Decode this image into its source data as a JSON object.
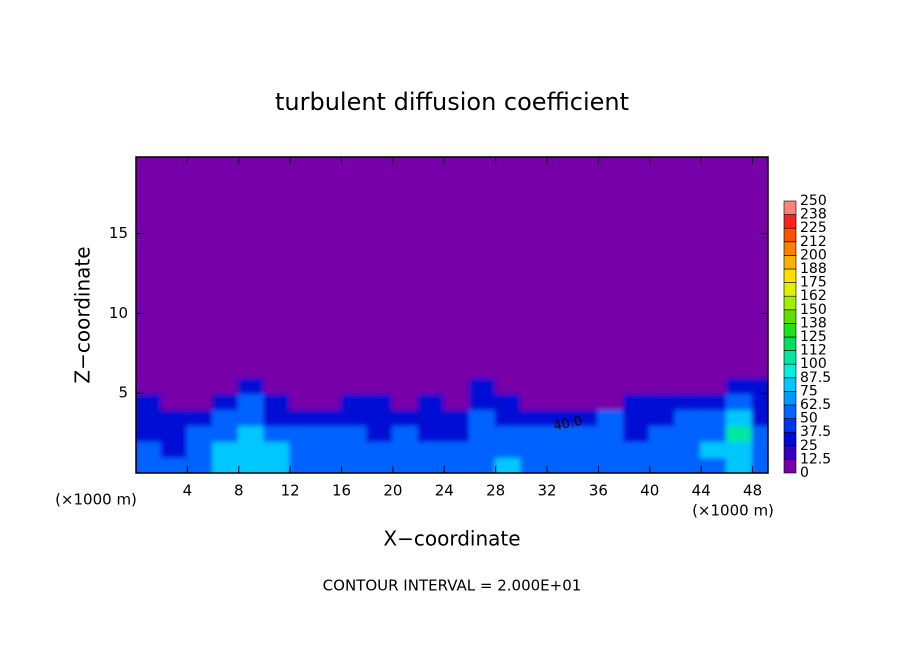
{
  "chart_data": {
    "type": "contour",
    "title": "turbulent diffusion coefficient",
    "xlabel": "X−coordinate",
    "ylabel": "Z−coordinate",
    "xlabel_unit": "(×1000 m)",
    "ylabel_unit": "(×1000 m)",
    "annotation": "CONTOUR INTERVAL = 2.000E+01",
    "contour_label": "40.0",
    "xlim": [
      0,
      49.2
    ],
    "ylim": [
      0,
      19.8
    ],
    "xticks": [
      4,
      8,
      12,
      16,
      20,
      24,
      28,
      32,
      36,
      40,
      44,
      48
    ],
    "yticks": [
      5,
      10,
      15
    ],
    "x": [
      1,
      3,
      5,
      7,
      9,
      11,
      13,
      15,
      17,
      19,
      21,
      23,
      25,
      27,
      29,
      31,
      33,
      35,
      37,
      39,
      41,
      43,
      45,
      47,
      49
    ],
    "z": [
      0.5,
      1.5,
      2.5,
      3.5,
      4.5,
      5.5,
      6.5
    ],
    "values": [
      [
        50,
        50,
        62,
        75,
        75,
        75,
        62,
        50,
        62,
        50,
        50,
        62,
        50,
        62,
        75,
        62,
        50,
        62,
        50,
        62,
        62,
        50,
        62,
        75,
        62
      ],
      [
        50,
        37,
        62,
        75,
        87,
        75,
        50,
        62,
        50,
        50,
        62,
        50,
        50,
        62,
        50,
        62,
        62,
        50,
        50,
        62,
        62,
        50,
        75,
        87,
        62
      ],
      [
        37,
        37,
        50,
        62,
        75,
        62,
        50,
        62,
        50,
        37,
        50,
        37,
        37,
        50,
        50,
        50,
        50,
        50,
        62,
        37,
        50,
        62,
        62,
        100,
        50
      ],
      [
        37,
        25,
        25,
        50,
        62,
        37,
        25,
        37,
        37,
        37,
        25,
        37,
        37,
        50,
        37,
        37,
        37,
        37,
        50,
        37,
        37,
        50,
        50,
        87,
        37
      ],
      [
        25,
        12,
        12,
        25,
        50,
        25,
        12,
        12,
        25,
        25,
        12,
        25,
        12,
        37,
        25,
        0,
        12,
        12,
        12,
        25,
        25,
        37,
        37,
        50,
        37
      ],
      [
        12,
        0,
        0,
        0,
        25,
        0,
        0,
        0,
        0,
        0,
        0,
        0,
        0,
        25,
        0,
        0,
        0,
        0,
        0,
        0,
        0,
        12,
        12,
        25,
        25
      ],
      [
        0,
        0,
        0,
        0,
        12,
        0,
        0,
        0,
        0,
        0,
        0,
        0,
        0,
        12,
        0,
        0,
        0,
        0,
        0,
        0,
        0,
        0,
        0,
        12,
        12
      ]
    ],
    "levels": [
      0,
      {
        "value": 12.5,
        "label": "12.5"
      },
      25,
      {
        "value": 37.5,
        "label": "37.5"
      },
      50,
      {
        "value": 62.5,
        "label": "62.5"
      },
      75,
      {
        "value": 87.5,
        "label": "87.5"
      },
      100,
      {
        "value": 112.5,
        "label": "112"
      },
      125,
      {
        "value": 137.5,
        "label": "138"
      },
      150,
      {
        "value": 162.5,
        "label": "162"
      },
      175,
      {
        "value": 187.5,
        "label": "188"
      },
      200,
      {
        "value": 212.5,
        "label": "212"
      },
      225,
      {
        "value": 237.5,
        "label": "238"
      },
      250
    ],
    "colors": [
      "#7800a8",
      "#3400c0",
      "#0008d4",
      "#0034f0",
      "#0064ff",
      "#0098ff",
      "#00c8ff",
      "#00f0e0",
      "#00e8a0",
      "#00e060",
      "#20e020",
      "#60e000",
      "#a0f000",
      "#e0f000",
      "#ffe000",
      "#ffb000",
      "#ff8000",
      "#ff5000",
      "#ff2020",
      "#ff8080"
    ]
  }
}
